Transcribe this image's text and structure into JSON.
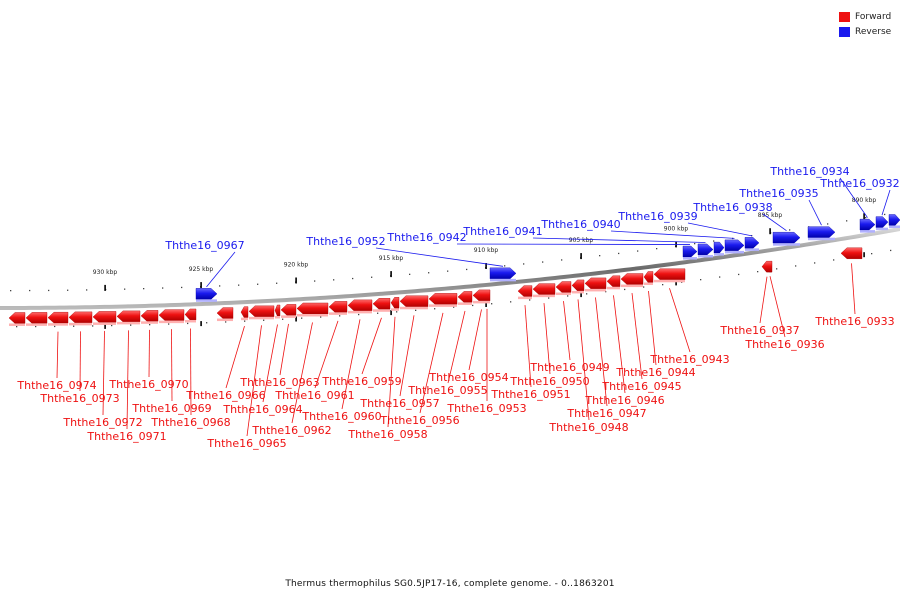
{
  "legend": {
    "forward_label": "Forward",
    "reverse_label": "Reverse",
    "forward_color": "#ee1111",
    "reverse_color": "#1a1aee"
  },
  "footer": {
    "caption": "Thermus thermophilus SG0.5JP17-16, complete genome. - 0..1863201"
  },
  "scale_ticks": [
    "930 kbp",
    "925 kbp",
    "920 kbp",
    "915 kbp",
    "910 kbp",
    "905 kbp",
    "900 kbp",
    "895 kbp",
    "890 kbp"
  ],
  "forward_genes": [
    "Ththe16_0974",
    "Ththe16_0973",
    "Ththe16_0972",
    "Ththe16_0971",
    "Ththe16_0970",
    "Ththe16_0969",
    "Ththe16_0968",
    "Ththe16_0966",
    "Ththe16_0965",
    "Ththe16_0964",
    "Ththe16_0963",
    "Ththe16_0962",
    "Ththe16_0961",
    "Ththe16_0960",
    "Ththe16_0959",
    "Ththe16_0958",
    "Ththe16_0957",
    "Ththe16_0956",
    "Ththe16_0955",
    "Ththe16_0954",
    "Ththe16_0953",
    "Ththe16_0951",
    "Ththe16_0950",
    "Ththe16_0949",
    "Ththe16_0948",
    "Ththe16_0947",
    "Ththe16_0946",
    "Ththe16_0945",
    "Ththe16_0944",
    "Ththe16_0943",
    "Ththe16_0937",
    "Ththe16_0936",
    "Ththe16_0933"
  ],
  "reverse_genes": [
    "Ththe16_0967",
    "Ththe16_0952",
    "Ththe16_0942",
    "Ththe16_0941",
    "Ththe16_0940",
    "Ththe16_0939",
    "Ththe16_0938",
    "Ththe16_0935",
    "Ththe16_0934",
    "Ththe16_0932"
  ]
}
